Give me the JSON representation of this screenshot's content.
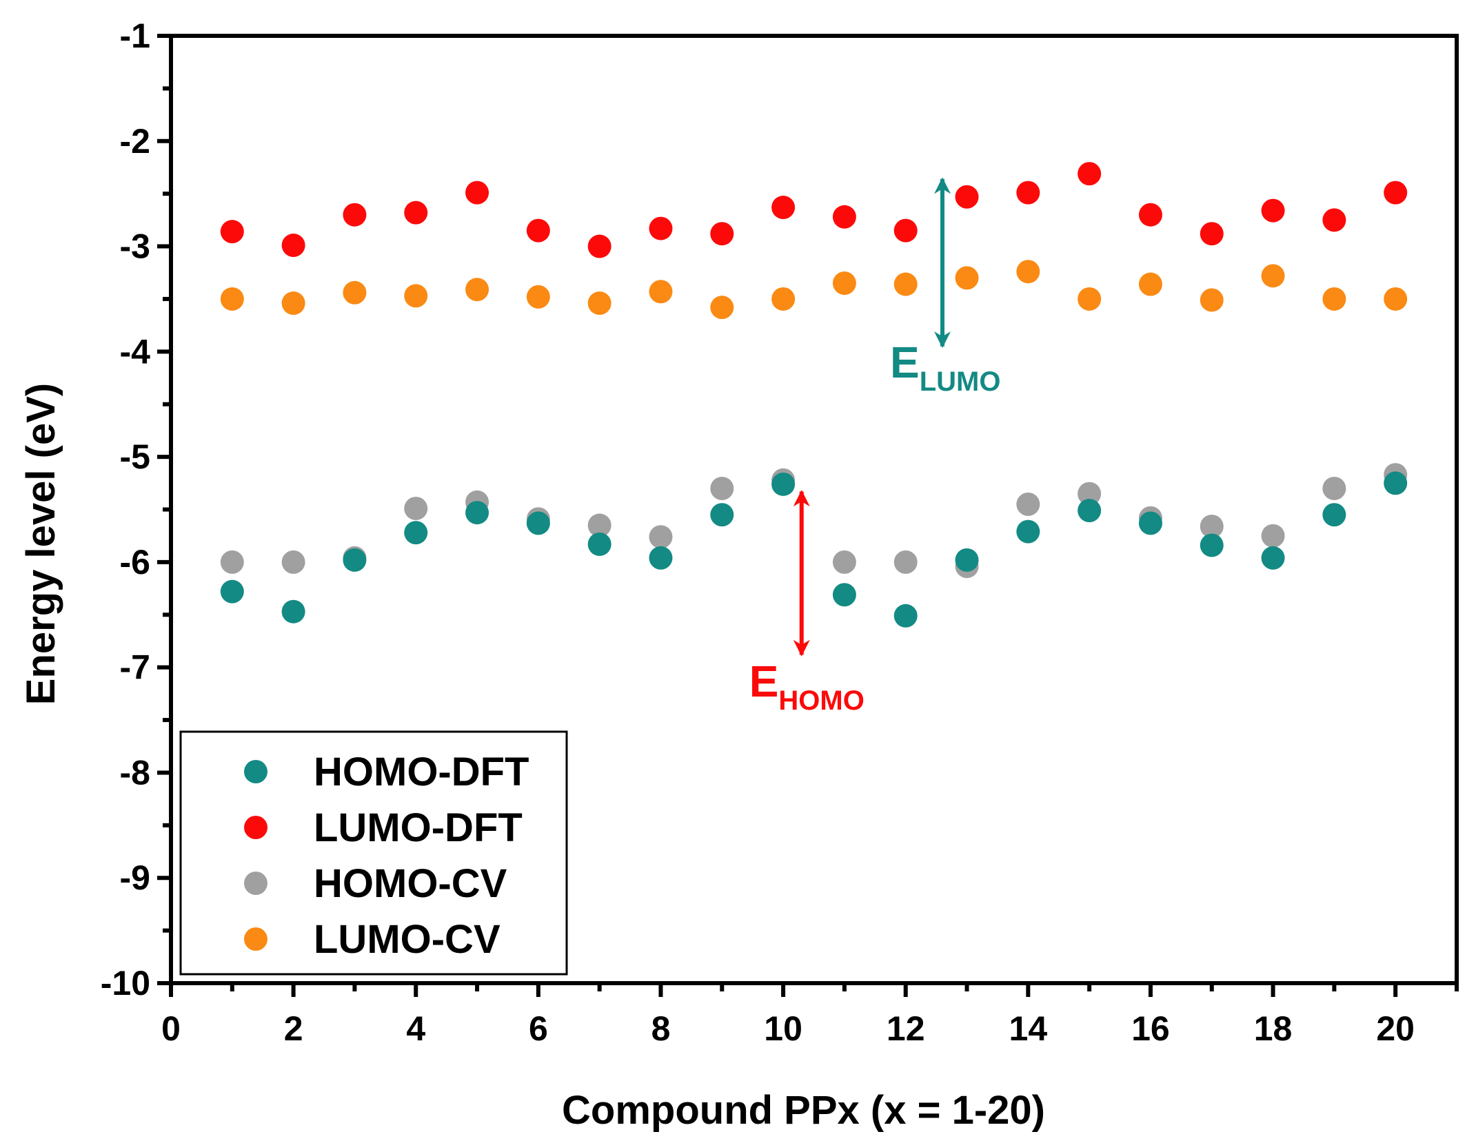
{
  "chart_data": {
    "type": "scatter",
    "title": "",
    "xlabel": "Compound PPx (x = 1-20)",
    "ylabel": "Energy level (eV)",
    "xlim": [
      0,
      21
    ],
    "ylim": [
      -10,
      -1
    ],
    "x_ticks": [
      0,
      2,
      4,
      6,
      8,
      10,
      12,
      14,
      16,
      18,
      20
    ],
    "x_tick_labels": [
      "0",
      "2",
      "4",
      "6",
      "8",
      "10",
      "12",
      "14",
      "16",
      "18",
      "20"
    ],
    "y_ticks": [
      -10,
      -9,
      -8,
      -7,
      -6,
      -5,
      -4,
      -3,
      -2,
      -1
    ],
    "y_tick_labels": [
      "-10",
      "-9",
      "-8",
      "-7",
      "-6",
      "-5",
      "-4",
      "-3",
      "-2",
      "-1"
    ],
    "grid": false,
    "legend_position": "bottom-left",
    "x": [
      1,
      2,
      3,
      4,
      5,
      6,
      7,
      8,
      9,
      10,
      11,
      12,
      13,
      14,
      15,
      16,
      17,
      18,
      19,
      20
    ],
    "series": [
      {
        "name": "HOMO-DFT",
        "color": "#138a84",
        "values": [
          -6.28,
          -6.47,
          -5.98,
          -5.72,
          -5.53,
          -5.63,
          -5.83,
          -5.96,
          -5.55,
          -5.26,
          -6.31,
          -6.51,
          -5.98,
          -5.71,
          -5.51,
          -5.63,
          -5.84,
          -5.96,
          -5.55,
          -5.25
        ]
      },
      {
        "name": "LUMO-DFT",
        "color": "#fc0a0a",
        "values": [
          -2.86,
          -2.99,
          -2.7,
          -2.68,
          -2.49,
          -2.85,
          -3.0,
          -2.83,
          -2.88,
          -2.63,
          -2.72,
          -2.85,
          -2.53,
          -2.49,
          -2.31,
          -2.7,
          -2.88,
          -2.66,
          -2.75,
          -2.49
        ]
      },
      {
        "name": "HOMO-CV",
        "color": "#a0a0a0",
        "values": [
          -6.0,
          -6.0,
          -5.96,
          -5.49,
          -5.43,
          -5.59,
          -5.65,
          -5.76,
          -5.3,
          -5.22,
          -6.0,
          -6.0,
          -6.04,
          -5.45,
          -5.35,
          -5.58,
          -5.66,
          -5.75,
          -5.3,
          -5.17
        ]
      },
      {
        "name": "LUMO-CV",
        "color": "#fa8a14",
        "values": [
          -3.5,
          -3.54,
          -3.44,
          -3.47,
          -3.41,
          -3.48,
          -3.54,
          -3.43,
          -3.58,
          -3.5,
          -3.35,
          -3.36,
          -3.3,
          -3.24,
          -3.5,
          -3.36,
          -3.51,
          -3.28,
          -3.5,
          -3.5
        ]
      }
    ],
    "annotations": [
      {
        "name": "lumo-arrow",
        "main": "E",
        "sub": "LUMO",
        "color": "#138a84",
        "x": 12.6,
        "y_from": -2.36,
        "y_to": -3.95,
        "label_y": -4.05
      },
      {
        "name": "homo-arrow",
        "main": "E",
        "sub": "HOMO",
        "color": "#fc0a0a",
        "x": 10.3,
        "y_from": -5.33,
        "y_to": -6.88,
        "label_y": -7.08
      }
    ]
  }
}
